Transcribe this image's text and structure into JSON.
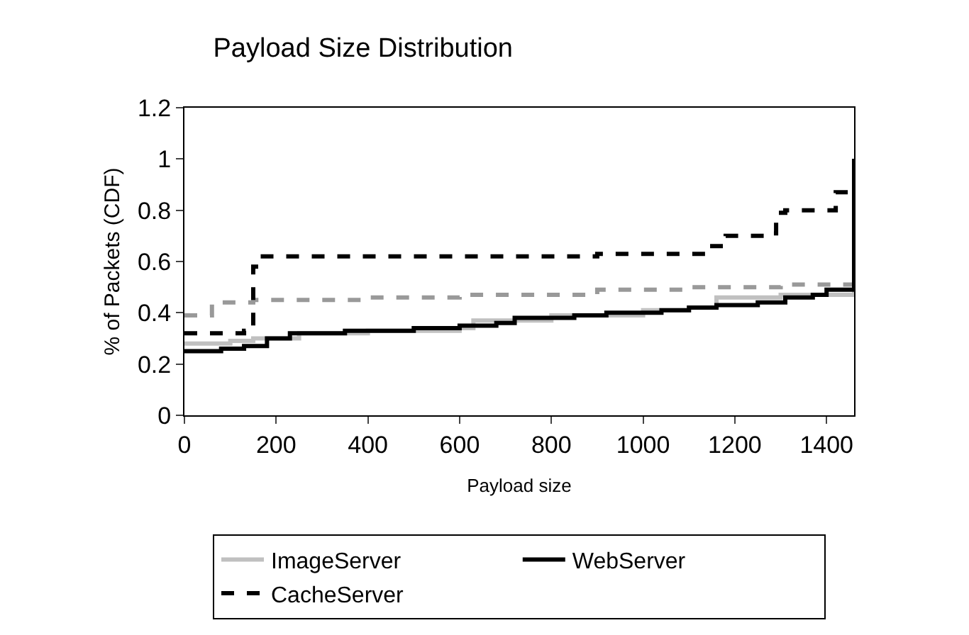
{
  "chart_data": {
    "type": "step",
    "title": "Payload Size Distribution",
    "xlabel": "Payload size",
    "ylabel": "% of Packets (CDF)",
    "xlim": [
      0,
      1460
    ],
    "xticks": [
      0,
      200,
      400,
      600,
      800,
      1000,
      1200,
      1400
    ],
    "ylim": [
      0,
      1.2
    ],
    "yticks": [
      0,
      0.2,
      0.4,
      0.6,
      0.8,
      1,
      1.2
    ],
    "legend": "bottom",
    "marker": "none",
    "series": [
      {
        "color": "#999999",
        "line_style": "dashed",
        "x": [
          0,
          60,
          150,
          400,
          600,
          900,
          1100,
          1300,
          1460
        ],
        "values": [
          0.39,
          0.44,
          0.45,
          0.46,
          0.47,
          0.49,
          0.5,
          0.51,
          0.51
        ]
      },
      {
        "name": "ImageServer",
        "color": "#c0c0c0",
        "line_style": "solid",
        "x": [
          0,
          100,
          150,
          250,
          400,
          600,
          630,
          800,
          1000,
          1100,
          1160,
          1300,
          1460
        ],
        "values": [
          0.28,
          0.29,
          0.3,
          0.32,
          0.33,
          0.34,
          0.37,
          0.39,
          0.41,
          0.42,
          0.46,
          0.47,
          0.49
        ]
      },
      {
        "name": "WebServer",
        "color": "#000000",
        "line_style": "solid",
        "x": [
          0,
          80,
          130,
          180,
          230,
          350,
          500,
          600,
          680,
          720,
          850,
          920,
          1040,
          1100,
          1160,
          1250,
          1310,
          1370,
          1400,
          1460,
          1460
        ],
        "values": [
          0.25,
          0.26,
          0.27,
          0.3,
          0.32,
          0.33,
          0.34,
          0.35,
          0.36,
          0.38,
          0.39,
          0.4,
          0.41,
          0.42,
          0.43,
          0.44,
          0.46,
          0.47,
          0.49,
          0.49,
          1.0
        ]
      },
      {
        "name": "CacheServer",
        "color": "#000000",
        "line_style": "dashed",
        "x": [
          0,
          130,
          140,
          150,
          165,
          850,
          900,
          1120,
          1140,
          1180,
          1270,
          1290,
          1310,
          1390,
          1420,
          1460,
          1460
        ],
        "values": [
          0.32,
          0.33,
          0.34,
          0.58,
          0.62,
          0.62,
          0.63,
          0.63,
          0.66,
          0.7,
          0.71,
          0.79,
          0.8,
          0.8,
          0.87,
          0.95,
          1.0
        ]
      }
    ]
  }
}
